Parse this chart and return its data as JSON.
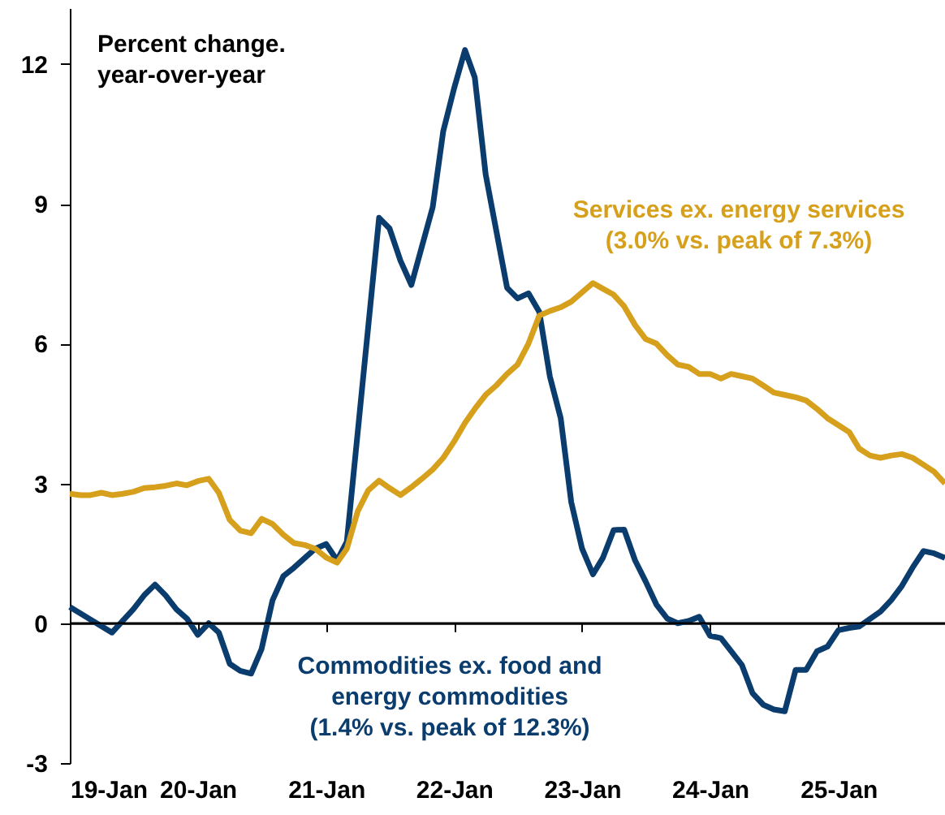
{
  "chart_data": {
    "type": "line",
    "ylabel": "Percent change.\nyear-over-year",
    "xlim": [
      "2019-01",
      "2025-11"
    ],
    "ylim": [
      -3,
      13.2
    ],
    "yticks": [
      -3,
      0,
      3,
      6,
      9,
      12
    ],
    "xticks": [
      {
        "value": "2019-01",
        "label": "19-Jan"
      },
      {
        "value": "2020-01",
        "label": "20-Jan"
      },
      {
        "value": "2021-01",
        "label": "21-Jan"
      },
      {
        "value": "2022-01",
        "label": "22-Jan"
      },
      {
        "value": "2023-01",
        "label": "23-Jan"
      },
      {
        "value": "2024-01",
        "label": "24-Jan"
      },
      {
        "value": "2025-01",
        "label": "25-Jan"
      }
    ],
    "marker": "none",
    "line_style": "solid",
    "ref_lines": [
      {
        "axis": "y",
        "value": 0,
        "color": "#000000"
      }
    ],
    "series": [
      {
        "name": "Commodities ex. food and\nenergy commodities\n(1.4% vs. peak of 12.3%)",
        "color": "#0b3c6e",
        "x": [
          "2019-01",
          "2019-03",
          "2019-05",
          "2019-07",
          "2019-08",
          "2019-09",
          "2019-10",
          "2019-11",
          "2019-12",
          "2020-01",
          "2020-02",
          "2020-03",
          "2020-04",
          "2020-05",
          "2020-06",
          "2020-07",
          "2020-08",
          "2020-09",
          "2020-10",
          "2020-11",
          "2020-12",
          "2021-01",
          "2021-02",
          "2021-03",
          "2021-06",
          "2021-07",
          "2021-08",
          "2021-09",
          "2021-11",
          "2021-12",
          "2022-01",
          "2022-02",
          "2022-03",
          "2022-04",
          "2022-06",
          "2022-07",
          "2022-08",
          "2022-09",
          "2022-10",
          "2022-11",
          "2022-12",
          "2023-01",
          "2023-02",
          "2023-03",
          "2023-04",
          "2023-05",
          "2023-06",
          "2023-07",
          "2023-08",
          "2023-09",
          "2023-10",
          "2023-11",
          "2023-12",
          "2024-01",
          "2024-02",
          "2024-03",
          "2024-04",
          "2024-05",
          "2024-06",
          "2024-07",
          "2024-08",
          "2024-09",
          "2024-10",
          "2024-11",
          "2024-12",
          "2025-01",
          "2025-02",
          "2025-03",
          "2025-05",
          "2025-06",
          "2025-07",
          "2025-08",
          "2025-09",
          "2025-10",
          "2025-11"
        ],
        "values": [
          0.35,
          0.08,
          -0.2,
          0.3,
          0.6,
          0.83,
          0.6,
          0.3,
          0.1,
          -0.25,
          0.0,
          -0.2,
          -0.87,
          -1.02,
          -1.08,
          -0.55,
          0.49,
          1.01,
          1.19,
          1.4,
          1.6,
          1.7,
          1.35,
          1.75,
          8.7,
          8.47,
          7.78,
          7.26,
          8.93,
          10.56,
          11.48,
          12.3,
          11.71,
          9.63,
          7.2,
          6.97,
          7.08,
          6.68,
          5.3,
          4.4,
          2.6,
          1.6,
          1.05,
          1.4,
          2.0,
          2.01,
          1.35,
          0.9,
          0.4,
          0.1,
          0.0,
          0.05,
          0.14,
          -0.27,
          -0.32,
          -0.6,
          -0.9,
          -1.5,
          -1.75,
          -1.85,
          -1.89,
          -1.0,
          -1.0,
          -0.6,
          -0.5,
          -0.15,
          -0.1,
          -0.07,
          0.25,
          0.5,
          0.8,
          1.2,
          1.55,
          1.5,
          1.4
        ]
      },
      {
        "name": "Services ex. energy services\n(3.0% vs. peak of 7.3%)",
        "color": "#d6a01c",
        "x": [
          "2019-01",
          "2019-02",
          "2019-03",
          "2019-04",
          "2019-05",
          "2019-06",
          "2019-07",
          "2019-08",
          "2019-09",
          "2019-10",
          "2019-11",
          "2019-12",
          "2020-01",
          "2020-02",
          "2020-03",
          "2020-04",
          "2020-05",
          "2020-06",
          "2020-07",
          "2020-08",
          "2020-09",
          "2020-10",
          "2020-11",
          "2020-12",
          "2021-01",
          "2021-02",
          "2021-03",
          "2021-04",
          "2021-05",
          "2021-06",
          "2021-07",
          "2021-08",
          "2021-09",
          "2021-10",
          "2021-11",
          "2021-12",
          "2022-01",
          "2022-02",
          "2022-03",
          "2022-04",
          "2022-05",
          "2022-06",
          "2022-07",
          "2022-08",
          "2022-09",
          "2022-10",
          "2022-11",
          "2022-12",
          "2023-01",
          "2023-02",
          "2023-03",
          "2023-04",
          "2023-05",
          "2023-06",
          "2023-07",
          "2023-08",
          "2023-09",
          "2023-10",
          "2023-11",
          "2023-12",
          "2024-01",
          "2024-02",
          "2024-03",
          "2024-04",
          "2024-05",
          "2024-06",
          "2024-07",
          "2024-08",
          "2024-09",
          "2024-10",
          "2024-11",
          "2024-12",
          "2025-01",
          "2025-02",
          "2025-03",
          "2025-04",
          "2025-05",
          "2025-06",
          "2025-07",
          "2025-08",
          "2025-09",
          "2025-10",
          "2025-11"
        ],
        "values": [
          2.78,
          2.75,
          2.75,
          2.8,
          2.75,
          2.78,
          2.82,
          2.9,
          2.92,
          2.95,
          3.0,
          2.96,
          3.05,
          3.1,
          2.8,
          2.22,
          1.99,
          1.93,
          2.24,
          2.13,
          1.9,
          1.72,
          1.68,
          1.6,
          1.41,
          1.3,
          1.6,
          2.4,
          2.85,
          3.06,
          2.9,
          2.75,
          2.92,
          3.1,
          3.3,
          3.55,
          3.9,
          4.3,
          4.6,
          4.9,
          5.1,
          5.35,
          5.55,
          6.0,
          6.6,
          6.7,
          6.78,
          6.9,
          7.1,
          7.3,
          7.18,
          7.05,
          6.8,
          6.4,
          6.1,
          6.0,
          5.75,
          5.55,
          5.5,
          5.35,
          5.35,
          5.25,
          5.35,
          5.3,
          5.25,
          5.1,
          4.95,
          4.9,
          4.85,
          4.78,
          4.6,
          4.4,
          4.25,
          4.1,
          3.75,
          3.6,
          3.55,
          3.6,
          3.63,
          3.55,
          3.4,
          3.25,
          3.0
        ]
      }
    ]
  }
}
